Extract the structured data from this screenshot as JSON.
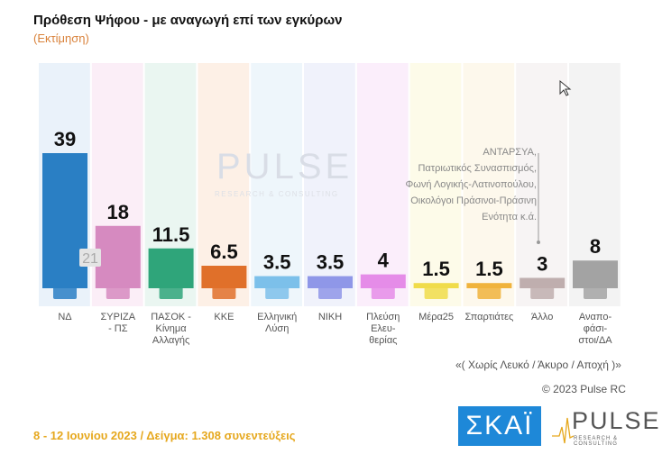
{
  "title": "Πρόθεση Ψήφου - με αναγωγή επί των εγκύρων",
  "subtitle": "(Εκτίμηση)",
  "chart_data": {
    "type": "bar",
    "title": "Πρόθεση Ψήφου - με αναγωγή επί των εγκύρων",
    "categories": [
      "ΝΔ",
      "ΣΥΡΙΖΑ - ΠΣ",
      "ΠΑΣΟΚ - Κίνημα Αλλαγής",
      "ΚΚΕ",
      "Ελληνική Λύση",
      "ΝΙΚΗ",
      "Πλεύση Ελευθερίας",
      "Μέρα25",
      "Σπαρτιάτες",
      "Άλλο",
      "Αναποφάσιστοι/ΔΑ"
    ],
    "label_lines": [
      [
        "ΝΔ"
      ],
      [
        "ΣΥΡΙΖΑ",
        "- ΠΣ"
      ],
      [
        "ΠΑΣΟΚ -",
        "Κίνημα",
        "Αλλαγής"
      ],
      [
        "ΚΚΕ"
      ],
      [
        "Ελληνική",
        "Λύση"
      ],
      [
        "ΝΙΚΗ"
      ],
      [
        "Πλεύση",
        "Ελευ-",
        "θερίας"
      ],
      [
        "Μέρα25"
      ],
      [
        "Σπαρτιάτες"
      ],
      [
        "Άλλο"
      ],
      [
        "Αναπο-",
        "φάσι-",
        "στοι/ΔΑ"
      ]
    ],
    "values": [
      39,
      18,
      11.5,
      6.5,
      3.5,
      3.5,
      4,
      1.5,
      1.5,
      3,
      8
    ],
    "value_labels": [
      "39",
      "18",
      "11.5",
      "6.5",
      "3.5",
      "3.5",
      "4",
      "1.5",
      "1.5",
      "3",
      "8"
    ],
    "colors": [
      "#2a7fc4",
      "#d68ac0",
      "#2fa57a",
      "#e0702a",
      "#7cc0ea",
      "#8f97e8",
      "#e58ce8",
      "#f0dc4a",
      "#f0b33c",
      "#bfaeae",
      "#a3a3a3"
    ],
    "panel_colors": [
      "#eaf2fa",
      "#fbeef7",
      "#eaf6f1",
      "#fdf0e6",
      "#eef6fb",
      "#f0f2fb",
      "#fbeefb",
      "#fdfbe9",
      "#fdf8ec",
      "#f7f4f4",
      "#f3f3f3"
    ],
    "gap_label": "21",
    "ylim": [
      0,
      45
    ]
  },
  "note_lines": [
    "ΑΝΤΑΡΣΥΑ,",
    "Πατριωτικός Συνασπισμός,",
    "Φωνή Λογικής-Λατινοπούλου,",
    "Οικολόγοι Πράσινοι-Πράσινη",
    "Ενότητα κ.ά."
  ],
  "excl_note": "«( Χωρίς Λευκό / Άκυρο / Αποχή )»",
  "copyright": "© 2023 Pulse RC",
  "footer_date": "8 - 12 Ιουνίου  2023  /  Δείγμα:  1.308 συνεντεύξεις",
  "logos": {
    "skai": "ΣΚΑΪ",
    "pulse": "PULSE",
    "pulse_sub": "RESEARCH & CONSULTING"
  }
}
